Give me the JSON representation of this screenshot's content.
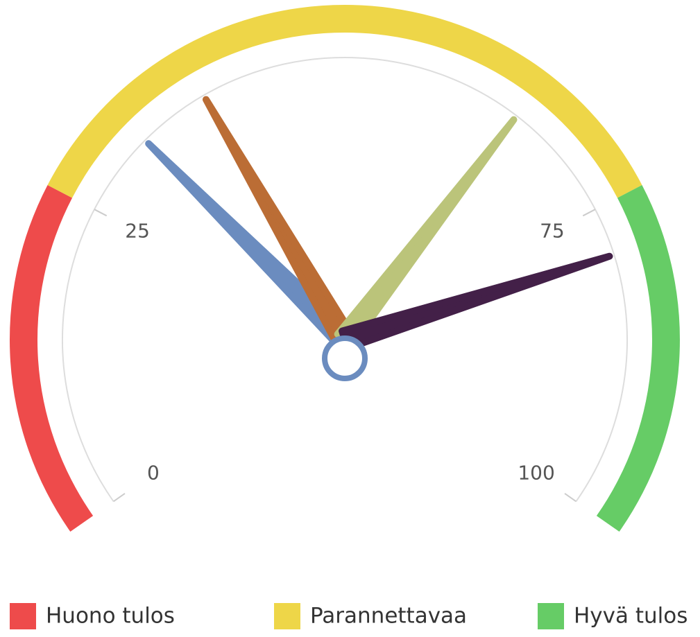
{
  "chart_data": {
    "type": "gauge",
    "ylim": [
      0,
      100
    ],
    "yticks": [
      0,
      25,
      75,
      100
    ],
    "bands": [
      {
        "name": "Huono tulos",
        "from": 0,
        "to": 25,
        "color": "#ee4b4b"
      },
      {
        "name": "Parannettavaa",
        "from": 25,
        "to": 75,
        "color": "#eed648"
      },
      {
        "name": "Hyvä tulos",
        "from": 75,
        "to": 100,
        "color": "#66cc66"
      }
    ],
    "needles": [
      {
        "value": 32,
        "color": "#6b8cbf"
      },
      {
        "value": 38,
        "color": "#bb6d35"
      },
      {
        "value": 65,
        "color": "#bbc47a"
      },
      {
        "value": 79,
        "color": "#432048"
      }
    ]
  }
}
